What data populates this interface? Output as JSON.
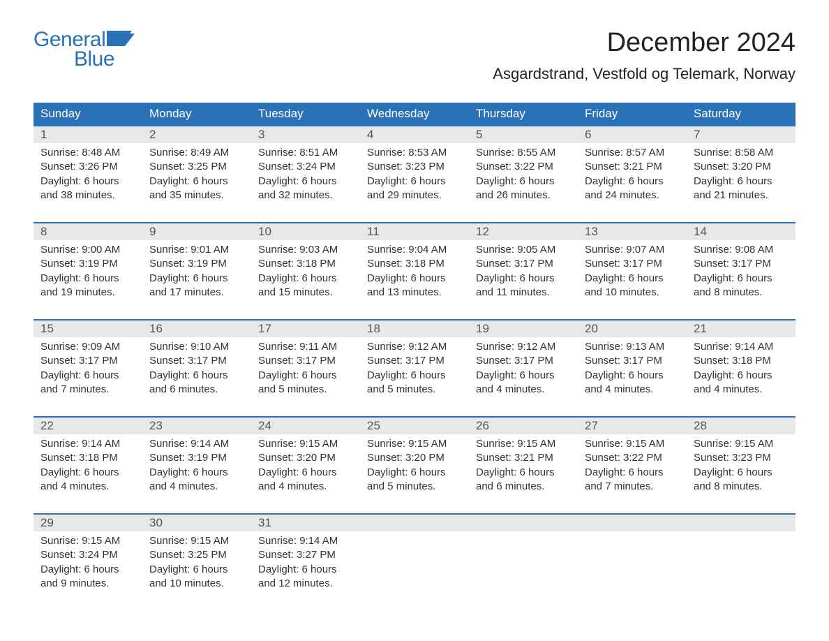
{
  "logo": {
    "word1": "General",
    "word2": "Blue",
    "brand_color": "#2a71b8"
  },
  "title": "December 2024",
  "location": "Asgardstrand, Vestfold og Telemark, Norway",
  "colors": {
    "header_bg": "#2a71b8",
    "header_text": "#ffffff",
    "daynum_bg": "#e8e8e8",
    "daynum_text": "#555555",
    "body_text": "#333333",
    "week_border": "#2a71b8",
    "background": "#ffffff"
  },
  "weekdays": [
    "Sunday",
    "Monday",
    "Tuesday",
    "Wednesday",
    "Thursday",
    "Friday",
    "Saturday"
  ],
  "weeks": [
    [
      {
        "n": "1",
        "sr": "Sunrise: 8:48 AM",
        "ss": "Sunset: 3:26 PM",
        "d1": "Daylight: 6 hours",
        "d2": "and 38 minutes."
      },
      {
        "n": "2",
        "sr": "Sunrise: 8:49 AM",
        "ss": "Sunset: 3:25 PM",
        "d1": "Daylight: 6 hours",
        "d2": "and 35 minutes."
      },
      {
        "n": "3",
        "sr": "Sunrise: 8:51 AM",
        "ss": "Sunset: 3:24 PM",
        "d1": "Daylight: 6 hours",
        "d2": "and 32 minutes."
      },
      {
        "n": "4",
        "sr": "Sunrise: 8:53 AM",
        "ss": "Sunset: 3:23 PM",
        "d1": "Daylight: 6 hours",
        "d2": "and 29 minutes."
      },
      {
        "n": "5",
        "sr": "Sunrise: 8:55 AM",
        "ss": "Sunset: 3:22 PM",
        "d1": "Daylight: 6 hours",
        "d2": "and 26 minutes."
      },
      {
        "n": "6",
        "sr": "Sunrise: 8:57 AM",
        "ss": "Sunset: 3:21 PM",
        "d1": "Daylight: 6 hours",
        "d2": "and 24 minutes."
      },
      {
        "n": "7",
        "sr": "Sunrise: 8:58 AM",
        "ss": "Sunset: 3:20 PM",
        "d1": "Daylight: 6 hours",
        "d2": "and 21 minutes."
      }
    ],
    [
      {
        "n": "8",
        "sr": "Sunrise: 9:00 AM",
        "ss": "Sunset: 3:19 PM",
        "d1": "Daylight: 6 hours",
        "d2": "and 19 minutes."
      },
      {
        "n": "9",
        "sr": "Sunrise: 9:01 AM",
        "ss": "Sunset: 3:19 PM",
        "d1": "Daylight: 6 hours",
        "d2": "and 17 minutes."
      },
      {
        "n": "10",
        "sr": "Sunrise: 9:03 AM",
        "ss": "Sunset: 3:18 PM",
        "d1": "Daylight: 6 hours",
        "d2": "and 15 minutes."
      },
      {
        "n": "11",
        "sr": "Sunrise: 9:04 AM",
        "ss": "Sunset: 3:18 PM",
        "d1": "Daylight: 6 hours",
        "d2": "and 13 minutes."
      },
      {
        "n": "12",
        "sr": "Sunrise: 9:05 AM",
        "ss": "Sunset: 3:17 PM",
        "d1": "Daylight: 6 hours",
        "d2": "and 11 minutes."
      },
      {
        "n": "13",
        "sr": "Sunrise: 9:07 AM",
        "ss": "Sunset: 3:17 PM",
        "d1": "Daylight: 6 hours",
        "d2": "and 10 minutes."
      },
      {
        "n": "14",
        "sr": "Sunrise: 9:08 AM",
        "ss": "Sunset: 3:17 PM",
        "d1": "Daylight: 6 hours",
        "d2": "and 8 minutes."
      }
    ],
    [
      {
        "n": "15",
        "sr": "Sunrise: 9:09 AM",
        "ss": "Sunset: 3:17 PM",
        "d1": "Daylight: 6 hours",
        "d2": "and 7 minutes."
      },
      {
        "n": "16",
        "sr": "Sunrise: 9:10 AM",
        "ss": "Sunset: 3:17 PM",
        "d1": "Daylight: 6 hours",
        "d2": "and 6 minutes."
      },
      {
        "n": "17",
        "sr": "Sunrise: 9:11 AM",
        "ss": "Sunset: 3:17 PM",
        "d1": "Daylight: 6 hours",
        "d2": "and 5 minutes."
      },
      {
        "n": "18",
        "sr": "Sunrise: 9:12 AM",
        "ss": "Sunset: 3:17 PM",
        "d1": "Daylight: 6 hours",
        "d2": "and 5 minutes."
      },
      {
        "n": "19",
        "sr": "Sunrise: 9:12 AM",
        "ss": "Sunset: 3:17 PM",
        "d1": "Daylight: 6 hours",
        "d2": "and 4 minutes."
      },
      {
        "n": "20",
        "sr": "Sunrise: 9:13 AM",
        "ss": "Sunset: 3:17 PM",
        "d1": "Daylight: 6 hours",
        "d2": "and 4 minutes."
      },
      {
        "n": "21",
        "sr": "Sunrise: 9:14 AM",
        "ss": "Sunset: 3:18 PM",
        "d1": "Daylight: 6 hours",
        "d2": "and 4 minutes."
      }
    ],
    [
      {
        "n": "22",
        "sr": "Sunrise: 9:14 AM",
        "ss": "Sunset: 3:18 PM",
        "d1": "Daylight: 6 hours",
        "d2": "and 4 minutes."
      },
      {
        "n": "23",
        "sr": "Sunrise: 9:14 AM",
        "ss": "Sunset: 3:19 PM",
        "d1": "Daylight: 6 hours",
        "d2": "and 4 minutes."
      },
      {
        "n": "24",
        "sr": "Sunrise: 9:15 AM",
        "ss": "Sunset: 3:20 PM",
        "d1": "Daylight: 6 hours",
        "d2": "and 4 minutes."
      },
      {
        "n": "25",
        "sr": "Sunrise: 9:15 AM",
        "ss": "Sunset: 3:20 PM",
        "d1": "Daylight: 6 hours",
        "d2": "and 5 minutes."
      },
      {
        "n": "26",
        "sr": "Sunrise: 9:15 AM",
        "ss": "Sunset: 3:21 PM",
        "d1": "Daylight: 6 hours",
        "d2": "and 6 minutes."
      },
      {
        "n": "27",
        "sr": "Sunrise: 9:15 AM",
        "ss": "Sunset: 3:22 PM",
        "d1": "Daylight: 6 hours",
        "d2": "and 7 minutes."
      },
      {
        "n": "28",
        "sr": "Sunrise: 9:15 AM",
        "ss": "Sunset: 3:23 PM",
        "d1": "Daylight: 6 hours",
        "d2": "and 8 minutes."
      }
    ],
    [
      {
        "n": "29",
        "sr": "Sunrise: 9:15 AM",
        "ss": "Sunset: 3:24 PM",
        "d1": "Daylight: 6 hours",
        "d2": "and 9 minutes."
      },
      {
        "n": "30",
        "sr": "Sunrise: 9:15 AM",
        "ss": "Sunset: 3:25 PM",
        "d1": "Daylight: 6 hours",
        "d2": "and 10 minutes."
      },
      {
        "n": "31",
        "sr": "Sunrise: 9:14 AM",
        "ss": "Sunset: 3:27 PM",
        "d1": "Daylight: 6 hours",
        "d2": "and 12 minutes."
      },
      {
        "n": "",
        "sr": "",
        "ss": "",
        "d1": "",
        "d2": ""
      },
      {
        "n": "",
        "sr": "",
        "ss": "",
        "d1": "",
        "d2": ""
      },
      {
        "n": "",
        "sr": "",
        "ss": "",
        "d1": "",
        "d2": ""
      },
      {
        "n": "",
        "sr": "",
        "ss": "",
        "d1": "",
        "d2": ""
      }
    ]
  ]
}
